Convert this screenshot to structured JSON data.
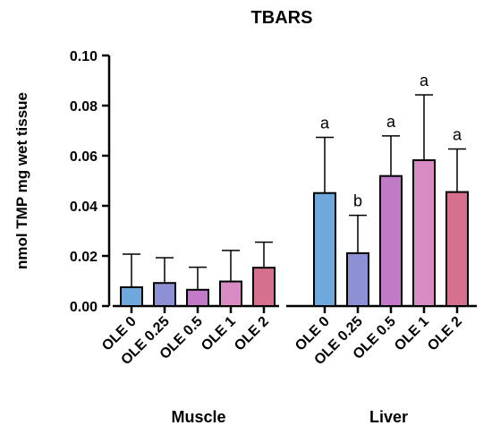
{
  "chart_data": {
    "type": "bar",
    "title": "TBARS",
    "ylabel": "nmol TMP mg wet tissue",
    "xlabel": "",
    "ylim": [
      0,
      0.1
    ],
    "yticks": [
      "0.00",
      "0.02",
      "0.04",
      "0.06",
      "0.08",
      "0.10"
    ],
    "grid": false,
    "legend": "none",
    "groups": [
      {
        "name": "Muscle",
        "categories": [
          "OLE 0",
          "OLE 0.25",
          "OLE 0.5",
          "OLE 1",
          "OLE 2"
        ],
        "values": [
          0.0075,
          0.0092,
          0.0065,
          0.0098,
          0.0153
        ],
        "error_upper": [
          0.0207,
          0.0193,
          0.0155,
          0.0222,
          0.0255
        ],
        "letters": [
          "",
          "",
          "",
          "",
          ""
        ]
      },
      {
        "name": "Liver",
        "categories": [
          "OLE 0",
          "OLE 0.25",
          "OLE 0.5",
          "OLE 1",
          "OLE 2"
        ],
        "values": [
          0.0451,
          0.0211,
          0.0519,
          0.0582,
          0.0455
        ],
        "error_upper": [
          0.0673,
          0.0362,
          0.0679,
          0.0843,
          0.0627
        ],
        "letters": [
          "a",
          "b",
          "a",
          "a",
          "a"
        ]
      }
    ],
    "colors": [
      "#6fa8dc",
      "#8e90d6",
      "#c07ac8",
      "#d98bc4",
      "#d6708f"
    ]
  }
}
